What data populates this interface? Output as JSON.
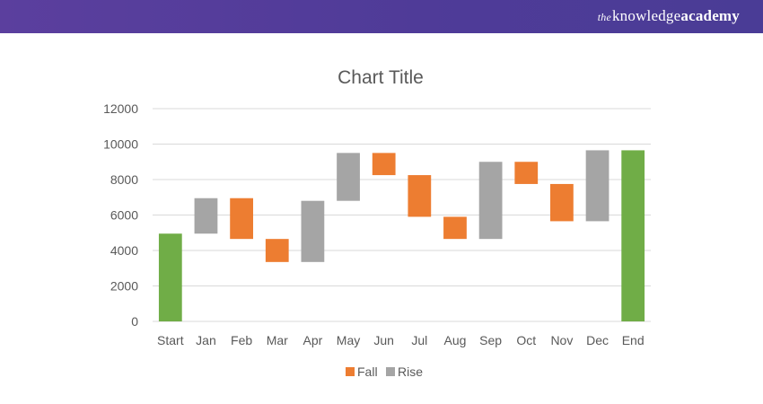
{
  "header": {
    "brand_prefix": "the",
    "brand_word1": "knowledge",
    "brand_word2": "academy"
  },
  "chart_data": {
    "type": "bar",
    "subtype": "waterfall",
    "title": "Chart Title",
    "xlabel": "",
    "ylabel": "",
    "ylim": [
      0,
      12000
    ],
    "yticks": [
      0,
      2000,
      4000,
      6000,
      8000,
      10000,
      12000
    ],
    "ytick_labels": [
      "0",
      "2000",
      "4000",
      "6000",
      "8000",
      "10000",
      "12000"
    ],
    "grid": true,
    "legend_position": "bottom",
    "categories": [
      "Start",
      "Jan",
      "Feb",
      "Mar",
      "Apr",
      "May",
      "Jun",
      "Jul",
      "Aug",
      "Sep",
      "Oct",
      "Nov",
      "Dec",
      "End"
    ],
    "bars": [
      {
        "category": "Start",
        "low": 0,
        "high": 4950,
        "kind": "total"
      },
      {
        "category": "Jan",
        "low": 4950,
        "high": 6950,
        "kind": "rise"
      },
      {
        "category": "Feb",
        "low": 4650,
        "high": 6950,
        "kind": "fall"
      },
      {
        "category": "Mar",
        "low": 3350,
        "high": 4650,
        "kind": "fall"
      },
      {
        "category": "Apr",
        "low": 3350,
        "high": 6800,
        "kind": "rise"
      },
      {
        "category": "May",
        "low": 6800,
        "high": 9500,
        "kind": "rise"
      },
      {
        "category": "Jun",
        "low": 8250,
        "high": 9500,
        "kind": "fall"
      },
      {
        "category": "Jul",
        "low": 5900,
        "high": 8250,
        "kind": "fall"
      },
      {
        "category": "Aug",
        "low": 4650,
        "high": 5900,
        "kind": "fall"
      },
      {
        "category": "Sep",
        "low": 4650,
        "high": 9000,
        "kind": "rise"
      },
      {
        "category": "Oct",
        "low": 7750,
        "high": 9000,
        "kind": "fall"
      },
      {
        "category": "Nov",
        "low": 5650,
        "high": 7750,
        "kind": "fall"
      },
      {
        "category": "Dec",
        "low": 5650,
        "high": 9650,
        "kind": "rise"
      },
      {
        "category": "End",
        "low": 0,
        "high": 9650,
        "kind": "total"
      }
    ],
    "legend": [
      {
        "label": "Fall",
        "kind": "fall"
      },
      {
        "label": "Rise",
        "kind": "rise"
      }
    ],
    "colors": {
      "fall": "#ed7d31",
      "rise": "#a5a5a5",
      "total": "#70ad47",
      "grid": "#d9d9d9",
      "text": "#595959"
    }
  }
}
